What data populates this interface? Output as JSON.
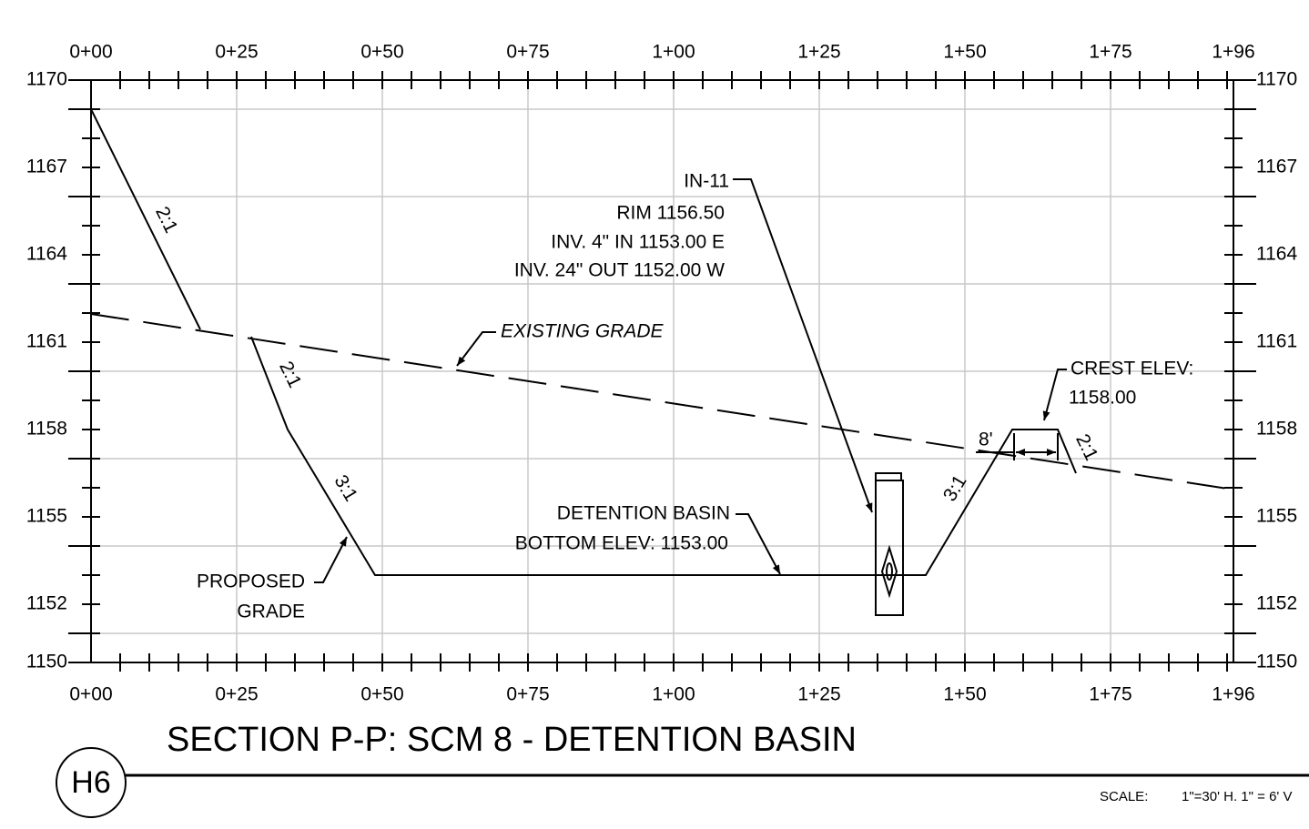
{
  "x_labels": [
    "0+00",
    "0+25",
    "0+50",
    "0+75",
    "1+00",
    "1+25",
    "1+50",
    "1+75",
    "1+96"
  ],
  "y_labels": [
    "1170",
    "1167",
    "1164",
    "1161",
    "1158",
    "1155",
    "1152",
    "1150"
  ],
  "annotations": {
    "in11": [
      "IN-11",
      "RIM 1156.50",
      "INV. 4\" IN 1153.00 E",
      "INV. 24\" OUT 1152.00 W"
    ],
    "existing_grade": "EXISTING GRADE",
    "crest": [
      "CREST ELEV:",
      "1158.00"
    ],
    "basin": [
      "DETENTION BASIN",
      "BOTTOM ELEV: 1153.00"
    ],
    "proposed": [
      "PROPOSED",
      "GRADE"
    ],
    "slopes": [
      "2:1",
      "2:1",
      "3:1",
      "3:1",
      "2:1"
    ],
    "dimension": "8'"
  },
  "title": "SECTION P-P: SCM 8 - DETENTION BASIN",
  "badge": "H6",
  "scale_label": "SCALE:",
  "scale_value": "1\"=30' H. 1\" = 6' V"
}
